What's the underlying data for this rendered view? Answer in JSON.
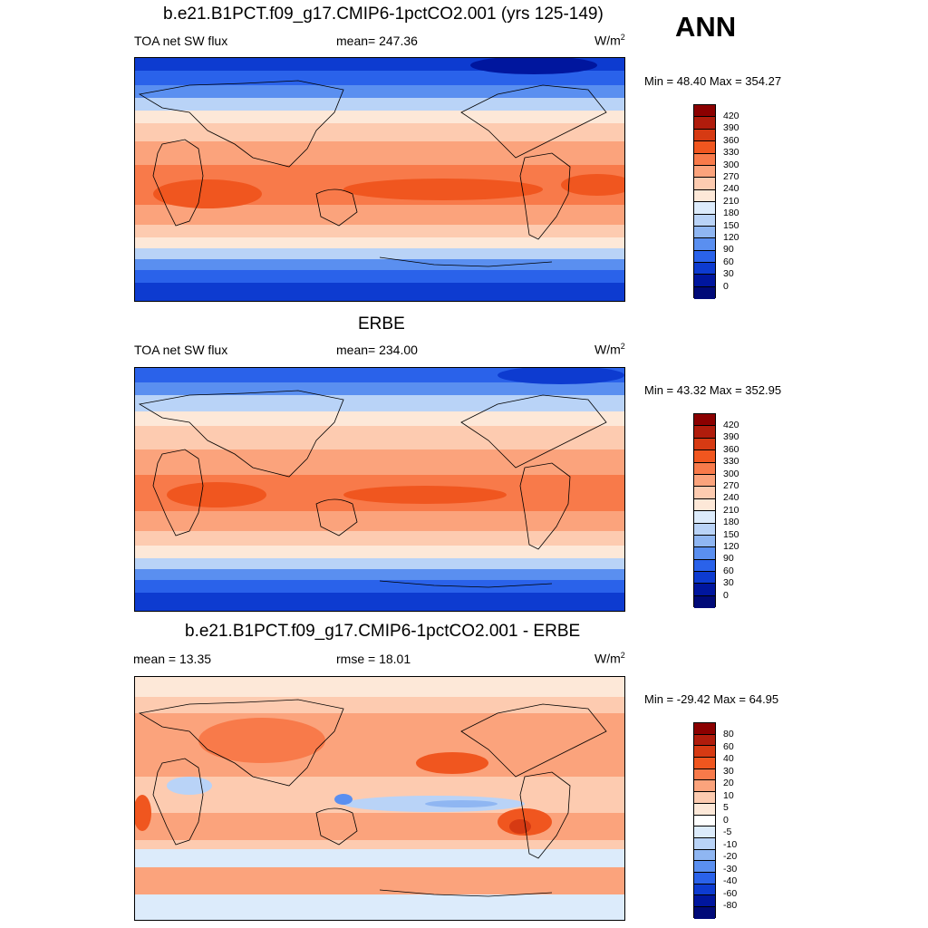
{
  "season": "ANN",
  "panels": [
    {
      "title": "b.e21.B1PCT.f09_g17.CMIP6-1pctCO2.001 (yrs 125-149)",
      "left_label": "TOA net SW flux",
      "center_label": "mean= 247.36",
      "units_base": "W/m",
      "units_exp": "2",
      "minmax": "Min =  48.40 Max = 354.27",
      "colorbar_labels": [
        "420",
        "390",
        "360",
        "330",
        "300",
        "270",
        "240",
        "210",
        "180",
        "150",
        "120",
        "90",
        "60",
        "30",
        "0"
      ]
    },
    {
      "title": "ERBE",
      "left_label": "TOA net SW flux",
      "center_label": "mean= 234.00",
      "units_base": "W/m",
      "units_exp": "2",
      "minmax": "Min =  43.32 Max = 352.95",
      "colorbar_labels": [
        "420",
        "390",
        "360",
        "330",
        "300",
        "270",
        "240",
        "210",
        "180",
        "150",
        "120",
        "90",
        "60",
        "30",
        "0"
      ]
    },
    {
      "title": "b.e21.B1PCT.f09_g17.CMIP6-1pctCO2.001 - ERBE",
      "left_label": "mean =  13.35",
      "center_label": "rmse =  18.01",
      "units_base": "W/m",
      "units_exp": "2",
      "minmax": "Min = -29.42 Max =  64.95",
      "colorbar_labels": [
        "80",
        "60",
        "40",
        "30",
        "20",
        "10",
        "5",
        "0",
        "-5",
        "-10",
        "-20",
        "-30",
        "-40",
        "-60",
        "-80"
      ]
    }
  ],
  "colors": {
    "abs_scale": [
      "#8b0000",
      "#b01c0c",
      "#d63a13",
      "#f0561f",
      "#f87a4a",
      "#fba37c",
      "#fdcbb0",
      "#fde8d8",
      "#dcebfb",
      "#b9d3f7",
      "#8fb6f2",
      "#5a8ff0",
      "#2a62ea",
      "#0d3bd0",
      "#00169e",
      "#000a78"
    ],
    "diff_scale": [
      "#8b0000",
      "#b01c0c",
      "#d63a13",
      "#f0561f",
      "#f87a4a",
      "#fba37c",
      "#fdcbb0",
      "#fde8d8",
      "#ffffff",
      "#dcebfb",
      "#b9d3f7",
      "#8fb6f2",
      "#5a8ff0",
      "#2a62ea",
      "#0d3bd0",
      "#00169e",
      "#000a78"
    ]
  }
}
